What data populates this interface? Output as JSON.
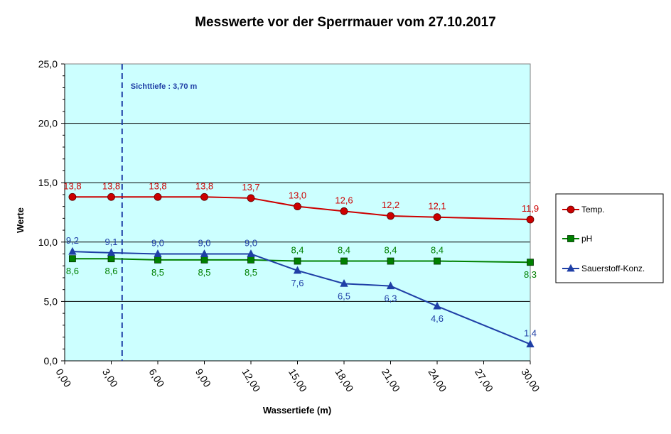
{
  "chart_data": {
    "type": "line",
    "title": "Messwerte vor der Sperrmauer vom 27.10.2017",
    "xlabel": "Wassertiefe  (m)",
    "ylabel": "Werte",
    "xlim": [
      0,
      30
    ],
    "ylim": [
      0,
      25
    ],
    "x_ticks": [
      "0,00",
      "3,00",
      "6,00",
      "9,00",
      "12,00",
      "15,00",
      "18,00",
      "21,00",
      "24,00",
      "27,00",
      "30,00"
    ],
    "y_ticks": [
      "0,0",
      "5,0",
      "10,0",
      "15,0",
      "20,0",
      "25,0"
    ],
    "grid": true,
    "legend_position": "right",
    "plot_background": "#ccffff",
    "annotation": {
      "text": "Sichttiefe : 3,70 m",
      "x": 3.7,
      "color": "#1f3fa6"
    },
    "x": [
      0.5,
      3,
      6,
      9,
      12,
      15,
      18,
      21,
      24,
      30
    ],
    "series": [
      {
        "name": "Temp.",
        "color": "#cc0000",
        "marker": "circle",
        "values": [
          13.8,
          13.8,
          13.8,
          13.8,
          13.7,
          13.0,
          12.6,
          12.2,
          12.1,
          11.9
        ],
        "labels": [
          "13,8",
          "13,8",
          "13,8",
          "13,8",
          "13,7",
          "13,0",
          "12,6",
          "12,2",
          "12,1",
          "11,9"
        ],
        "label_position": "above"
      },
      {
        "name": "pH",
        "color": "#008000",
        "marker": "square",
        "values": [
          8.6,
          8.6,
          8.5,
          8.5,
          8.5,
          8.4,
          8.4,
          8.4,
          8.4,
          8.3
        ],
        "labels": [
          "8,6",
          "8,6",
          "8,5",
          "8,5",
          "8,5",
          "8,4",
          "8,4",
          "8,4",
          "8,4",
          "8,3"
        ],
        "label_positions": [
          "below",
          "below",
          "below",
          "below",
          "below",
          "above",
          "above",
          "above",
          "above",
          "below"
        ]
      },
      {
        "name": "Sauerstoff-Konz.",
        "color": "#1f3fa6",
        "marker": "triangle",
        "values": [
          9.2,
          9.1,
          9.0,
          9.0,
          9.0,
          7.6,
          6.5,
          6.3,
          4.6,
          1.4
        ],
        "labels": [
          "9,2",
          "9,1",
          "9,0",
          "9,0",
          "9,0",
          "7,6",
          "6,5",
          "6,3",
          "4,6",
          "1,4"
        ],
        "label_positions": [
          "above",
          "above",
          "above",
          "above",
          "above",
          "below",
          "below",
          "below",
          "below",
          "above"
        ]
      }
    ]
  }
}
